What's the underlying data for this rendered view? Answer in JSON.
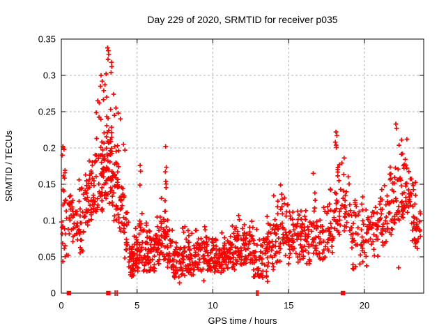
{
  "title": "Day 229 of 2020, SRMTID for receiver p035",
  "axes": {
    "xlabel": "GPS time / hours",
    "ylabel": "SRMTID / TECUs"
  },
  "style": {
    "marker_color": "#ff0000",
    "grid_color": "#b0b0b0",
    "border_color": "#000000",
    "background": "#ffffff"
  },
  "chart_data": {
    "type": "scatter",
    "marker": "plus",
    "marker_color": "#ff0000",
    "title": "Day 229 of 2020, SRMTID for receiver p035",
    "xlabel": "GPS time / hours",
    "ylabel": "SRMTID / TECUs",
    "xlim": [
      0,
      23.91
    ],
    "ylim": [
      0,
      0.35
    ],
    "xticks": [
      "0",
      "5",
      "10",
      "15",
      "20"
    ],
    "yticks": [
      "0",
      "0.05",
      "0.1",
      "0.15",
      "0.2",
      "0.25",
      "0.3",
      "0.35"
    ],
    "grid": true,
    "legend": "none",
    "bands_format": [
      "hour_start",
      "hour_end",
      "count",
      "value_min",
      "value_max"
    ],
    "density_bands": [
      [
        0.0,
        0.3,
        16,
        0.08,
        0.205
      ],
      [
        0.05,
        0.5,
        7,
        0.04,
        0.08
      ],
      [
        0.3,
        0.7,
        18,
        0.08,
        0.165
      ],
      [
        0.7,
        1.1,
        22,
        0.07,
        0.16
      ],
      [
        1.1,
        1.5,
        24,
        0.055,
        0.17
      ],
      [
        1.5,
        1.9,
        28,
        0.09,
        0.195
      ],
      [
        1.9,
        2.3,
        30,
        0.1,
        0.22
      ],
      [
        2.3,
        2.7,
        30,
        0.11,
        0.27
      ],
      [
        2.7,
        3.05,
        32,
        0.13,
        0.27
      ],
      [
        3.05,
        3.45,
        40,
        0.12,
        0.28
      ],
      [
        3.45,
        3.8,
        30,
        0.09,
        0.22
      ],
      [
        3.8,
        4.15,
        26,
        0.08,
        0.16
      ],
      [
        4.15,
        4.45,
        14,
        0.04,
        0.12
      ],
      [
        4.45,
        4.8,
        34,
        0.022,
        0.075
      ],
      [
        4.8,
        5.1,
        26,
        0.03,
        0.1
      ],
      [
        5.1,
        5.35,
        22,
        0.04,
        0.175
      ],
      [
        5.35,
        5.75,
        30,
        0.03,
        0.115
      ],
      [
        5.75,
        6.15,
        30,
        0.03,
        0.105
      ],
      [
        6.15,
        6.55,
        28,
        0.035,
        0.12
      ],
      [
        6.55,
        6.95,
        30,
        0.04,
        0.155
      ],
      [
        6.85,
        6.95,
        5,
        0.14,
        0.2
      ],
      [
        6.95,
        7.4,
        30,
        0.03,
        0.105
      ],
      [
        7.4,
        7.85,
        30,
        0.02,
        0.09
      ],
      [
        7.85,
        8.3,
        30,
        0.022,
        0.105
      ],
      [
        8.3,
        8.75,
        30,
        0.022,
        0.09
      ],
      [
        8.75,
        9.2,
        30,
        0.025,
        0.095
      ],
      [
        9.2,
        9.65,
        30,
        0.03,
        0.105
      ],
      [
        9.65,
        10.1,
        30,
        0.03,
        0.095
      ],
      [
        10.1,
        10.55,
        30,
        0.028,
        0.085
      ],
      [
        10.55,
        11.0,
        30,
        0.03,
        0.09
      ],
      [
        11.0,
        11.45,
        30,
        0.032,
        0.1
      ],
      [
        11.45,
        11.9,
        30,
        0.04,
        0.118
      ],
      [
        11.9,
        12.35,
        28,
        0.035,
        0.115
      ],
      [
        12.35,
        12.65,
        18,
        0.04,
        0.13
      ],
      [
        12.65,
        13.1,
        26,
        0.022,
        0.095
      ],
      [
        13.1,
        13.55,
        26,
        0.02,
        0.09
      ],
      [
        13.55,
        14.0,
        28,
        0.03,
        0.11
      ],
      [
        14.0,
        14.45,
        30,
        0.04,
        0.145
      ],
      [
        14.45,
        14.95,
        32,
        0.05,
        0.155
      ],
      [
        14.95,
        15.45,
        30,
        0.04,
        0.135
      ],
      [
        15.45,
        15.95,
        30,
        0.04,
        0.13
      ],
      [
        15.95,
        16.45,
        28,
        0.04,
        0.12
      ],
      [
        16.45,
        16.95,
        28,
        0.05,
        0.15
      ],
      [
        16.95,
        17.45,
        26,
        0.04,
        0.125
      ],
      [
        17.45,
        17.95,
        26,
        0.05,
        0.15
      ],
      [
        17.95,
        18.35,
        26,
        0.08,
        0.215
      ],
      [
        18.35,
        19.15,
        36,
        0.08,
        0.2
      ],
      [
        19.15,
        19.7,
        28,
        0.03,
        0.145
      ],
      [
        19.7,
        20.3,
        30,
        0.035,
        0.14
      ],
      [
        20.3,
        21.0,
        32,
        0.05,
        0.15
      ],
      [
        21.0,
        21.5,
        28,
        0.06,
        0.16
      ],
      [
        21.5,
        22.0,
        30,
        0.08,
        0.2
      ],
      [
        22.0,
        22.55,
        32,
        0.1,
        0.225
      ],
      [
        22.55,
        23.1,
        32,
        0.11,
        0.205
      ],
      [
        23.1,
        23.45,
        24,
        0.06,
        0.155
      ],
      [
        23.45,
        23.7,
        12,
        0.06,
        0.135
      ]
    ],
    "feature_points": [
      [
        3.05,
        0.338
      ],
      [
        3.1,
        0.334
      ],
      [
        3.12,
        0.329
      ],
      [
        3.08,
        0.322
      ],
      [
        3.3,
        0.318
      ],
      [
        3.33,
        0.312
      ],
      [
        3.28,
        0.304
      ],
      [
        2.95,
        0.302
      ],
      [
        2.62,
        0.3
      ],
      [
        2.7,
        0.292
      ],
      [
        2.88,
        0.287
      ],
      [
        2.58,
        0.285
      ],
      [
        2.8,
        0.279
      ],
      [
        3.45,
        0.274
      ],
      [
        3.0,
        0.27
      ],
      [
        2.4,
        0.265
      ],
      [
        2.5,
        0.262
      ],
      [
        3.6,
        0.255
      ],
      [
        3.75,
        0.248
      ],
      [
        3.5,
        0.245
      ],
      [
        3.9,
        0.24
      ],
      [
        0.1,
        0.202
      ],
      [
        0.18,
        0.198
      ],
      [
        0.07,
        0.19
      ],
      [
        4.1,
        0.205
      ],
      [
        4.2,
        0.197
      ],
      [
        5.2,
        0.176
      ],
      [
        5.23,
        0.168
      ],
      [
        6.88,
        0.202
      ],
      [
        16.62,
        0.165
      ],
      [
        18.12,
        0.222
      ],
      [
        18.18,
        0.217
      ],
      [
        18.08,
        0.208
      ],
      [
        22.07,
        0.233
      ],
      [
        22.12,
        0.227
      ],
      [
        22.8,
        0.212
      ],
      [
        7.8,
        0.014
      ],
      [
        9.4,
        0.017
      ],
      [
        13.6,
        0.016
      ],
      [
        22.25,
        0.035
      ]
    ],
    "zero_markers": {
      "squares": [
        0.5,
        3.1,
        18.58
      ],
      "double_ticks": [
        3.55,
        3.68,
        12.87,
        12.97
      ]
    }
  }
}
